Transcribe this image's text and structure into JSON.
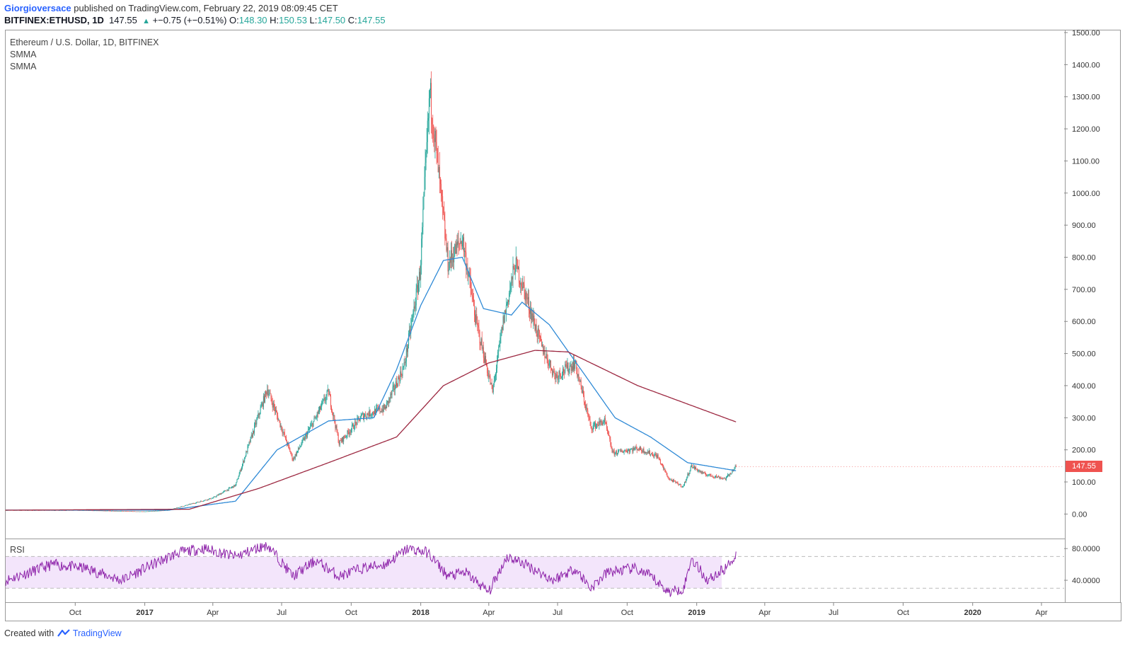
{
  "header": {
    "user": "Giorgioversace",
    "published": " published on TradingView.com, February 22, 2019 08:09:45 CET",
    "symbol": "BITFINEX:ETHUSD, 1D",
    "last": "147.55",
    "change_arrow": "▲",
    "change": "+−0.75 (+−0.51%)",
    "o_label": "O:",
    "o": "148.30",
    "h_label": "H:",
    "h": "150.53",
    "l_label": "L:",
    "l": "147.50",
    "c_label": "C:",
    "c": "147.55"
  },
  "legend": {
    "title": "Ethereum / U.S. Dollar, 1D, BITFINEX",
    "ind1": "SMMA",
    "ind2": "SMMA",
    "rsi": "RSI"
  },
  "price_tag": "147.55",
  "footer": {
    "created": "Created with ",
    "brand": "TradingView"
  },
  "colors": {
    "up": "#26a69a",
    "down": "#ef5350",
    "smma_fast": "#2f8ad6",
    "smma_slow": "#9c2740",
    "rsi_line": "#8e24aa",
    "rsi_band": "#f3e5fb"
  },
  "icons": {
    "trend_arrow": "triangle-up-icon",
    "tradingview_logo": "cloud-logo-icon"
  },
  "chart_data": [
    {
      "type": "candlestick",
      "title": "Ethereum / U.S. Dollar, 1D, BITFINEX",
      "x_ticks": [
        "Oct",
        "2017",
        "Apr",
        "Jul",
        "Oct",
        "2018",
        "Apr",
        "Jul",
        "Oct",
        "2019",
        "Apr",
        "Jul",
        "Oct",
        "2020",
        "Apr"
      ],
      "x_ticks_bold": [
        "2017",
        "2018",
        "2019",
        "2020"
      ],
      "y_ticks": [
        "0.00",
        "100.00",
        "200.00",
        "300.00",
        "400.00",
        "500.00",
        "600.00",
        "700.00",
        "800.00",
        "900.00",
        "1000.00",
        "1100.00",
        "1200.00",
        "1300.00",
        "1400.00",
        "1500.00"
      ],
      "ylim": [
        -30,
        1500
      ],
      "x_range": [
        "2016-07",
        "2020-05"
      ],
      "price_anchors": {
        "dates": [
          "2016-07",
          "2016-10",
          "2017-01",
          "2017-02",
          "2017-03",
          "2017-04",
          "2017-05",
          "2017-06-12",
          "2017-07-16",
          "2017-08-15",
          "2017-09-01",
          "2017-09-15",
          "2017-10-15",
          "2017-11-15",
          "2017-12-10",
          "2017-12-31",
          "2018-01-13",
          "2018-01-25",
          "2018-02-06",
          "2018-02-25",
          "2018-03-15",
          "2018-04-06",
          "2018-04-20",
          "2018-05-06",
          "2018-05-20",
          "2018-06-10",
          "2018-06-28",
          "2018-07-24",
          "2018-08-14",
          "2018-09-01",
          "2018-09-12",
          "2018-10-15",
          "2018-11-10",
          "2018-11-25",
          "2018-12-14",
          "2018-12-25",
          "2019-01-10",
          "2019-02-08",
          "2019-02-22"
        ],
        "close": [
          12,
          12,
          8,
          12,
          30,
          50,
          90,
          390,
          170,
          300,
          380,
          220,
          305,
          330,
          460,
          750,
          1320,
          1050,
          780,
          860,
          600,
          380,
          600,
          780,
          680,
          520,
          430,
          470,
          270,
          290,
          190,
          205,
          180,
          110,
          85,
          150,
          125,
          110,
          147.55
        ]
      },
      "smma_fast_anchors": {
        "dates": [
          "2016-07",
          "2017-02",
          "2017-05",
          "2017-06-25",
          "2017-09-01",
          "2017-10-31",
          "2017-11-30",
          "2018-01-01",
          "2018-01-31",
          "2018-02-25",
          "2018-03-25",
          "2018-05-01",
          "2018-05-15",
          "2018-06-20",
          "2018-08-01",
          "2018-09-15",
          "2018-11-01",
          "2018-12-20",
          "2019-02-22"
        ],
        "values": [
          12,
          12,
          40,
          200,
          290,
          300,
          450,
          650,
          790,
          800,
          640,
          620,
          660,
          590,
          450,
          300,
          240,
          160,
          135
        ]
      },
      "smma_slow_anchors": {
        "dates": [
          "2016-07",
          "2017-03",
          "2017-06-01",
          "2017-09-01",
          "2017-11-30",
          "2018-01-31",
          "2018-03-31",
          "2018-06-01",
          "2018-07-15",
          "2018-10-15",
          "2019-02-22"
        ],
        "values": [
          12,
          15,
          80,
          160,
          240,
          400,
          470,
          510,
          505,
          400,
          287
        ]
      }
    },
    {
      "type": "line",
      "title": "RSI",
      "y_ticks": [
        "40.0000",
        "80.0000"
      ],
      "bands": [
        30,
        70
      ],
      "ylim": [
        15,
        90
      ],
      "rsi_anchors": {
        "dates": [
          "2016-07",
          "2016-09-01",
          "2016-10-15",
          "2016-12-01",
          "2017-01-01",
          "2017-02-15",
          "2017-03-20",
          "2017-05-01",
          "2017-06-12",
          "2017-07-16",
          "2017-08-15",
          "2017-09-15",
          "2017-10-15",
          "2017-11-15",
          "2017-12-15",
          "2018-01-10",
          "2018-02-06",
          "2018-03-01",
          "2018-04-01",
          "2018-04-25",
          "2018-05-20",
          "2018-06-25",
          "2018-07-24",
          "2018-08-14",
          "2018-09-05",
          "2018-10-10",
          "2018-11-01",
          "2018-11-25",
          "2018-12-15",
          "2018-12-25",
          "2019-01-15",
          "2019-02-08",
          "2019-02-22"
        ],
        "values": [
          40,
          60,
          55,
          40,
          55,
          75,
          80,
          70,
          85,
          45,
          65,
          45,
          55,
          60,
          80,
          75,
          45,
          50,
          25,
          70,
          60,
          40,
          55,
          30,
          50,
          55,
          45,
          25,
          30,
          68,
          40,
          55,
          72
        ]
      }
    }
  ]
}
